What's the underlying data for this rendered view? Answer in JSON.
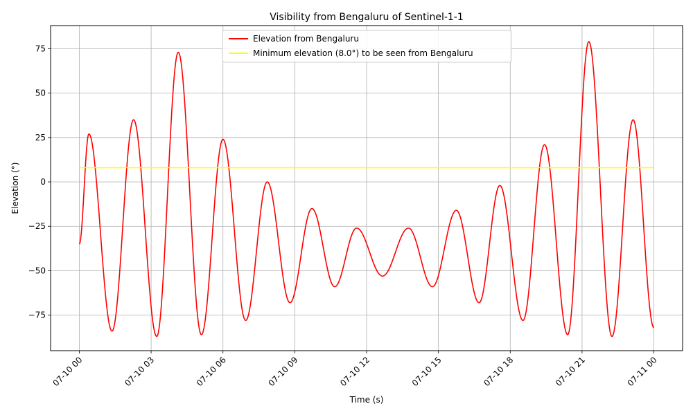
{
  "chart_data": {
    "type": "line",
    "title": "Visibility from Bengaluru of Sentinel-1-1",
    "xlabel": "Time (s)",
    "ylabel": "Elevation (°)",
    "xlim": [
      "2025-07-10 00:00",
      "2025-07-11 00:00"
    ],
    "ylim": [
      -95,
      88
    ],
    "grid": true,
    "legend_position": "top-center",
    "x_ticks": [
      {
        "value": "2025-07-10 00:00",
        "label": "07-10 00"
      },
      {
        "value": "2025-07-10 03:00",
        "label": "07-10 03"
      },
      {
        "value": "2025-07-10 06:00",
        "label": "07-10 06"
      },
      {
        "value": "2025-07-10 09:00",
        "label": "07-10 09"
      },
      {
        "value": "2025-07-10 12:00",
        "label": "07-10 12"
      },
      {
        "value": "2025-07-10 15:00",
        "label": "07-10 15"
      },
      {
        "value": "2025-07-10 18:00",
        "label": "07-10 18"
      },
      {
        "value": "2025-07-10 21:00",
        "label": "07-10 21"
      },
      {
        "value": "2025-07-11 00:00",
        "label": "07-11 00"
      }
    ],
    "y_ticks": [
      {
        "value": -75,
        "label": "−75"
      },
      {
        "value": -50,
        "label": "−50"
      },
      {
        "value": -25,
        "label": "−25"
      },
      {
        "value": 0,
        "label": "0"
      },
      {
        "value": 25,
        "label": "25"
      },
      {
        "value": 50,
        "label": "50"
      },
      {
        "value": 75,
        "label": "75"
      }
    ],
    "series": [
      {
        "name": "Elevation from Bengaluru",
        "color": "#ff0000",
        "extrema": [
          {
            "x": "2025-07-10 00:00",
            "y": -35
          },
          {
            "x": "2025-07-10 00:24",
            "y": 27
          },
          {
            "x": "2025-07-10 01:22",
            "y": -84
          },
          {
            "x": "2025-07-10 02:16",
            "y": 35
          },
          {
            "x": "2025-07-10 03:14",
            "y": -87
          },
          {
            "x": "2025-07-10 04:08",
            "y": 73
          },
          {
            "x": "2025-07-10 05:06",
            "y": -86
          },
          {
            "x": "2025-07-10 06:00",
            "y": 24
          },
          {
            "x": "2025-07-10 06:57",
            "y": -78
          },
          {
            "x": "2025-07-10 07:51",
            "y": 0
          },
          {
            "x": "2025-07-10 08:48",
            "y": -68
          },
          {
            "x": "2025-07-10 09:43",
            "y": -15
          },
          {
            "x": "2025-07-10 10:40",
            "y": -59
          },
          {
            "x": "2025-07-10 11:35",
            "y": -26
          },
          {
            "x": "2025-07-10 12:40",
            "y": -53
          },
          {
            "x": "2025-07-10 13:45",
            "y": -26
          },
          {
            "x": "2025-07-10 14:45",
            "y": -59
          },
          {
            "x": "2025-07-10 15:45",
            "y": -16
          },
          {
            "x": "2025-07-10 16:42",
            "y": -68
          },
          {
            "x": "2025-07-10 17:34",
            "y": -2
          },
          {
            "x": "2025-07-10 18:32",
            "y": -78
          },
          {
            "x": "2025-07-10 19:26",
            "y": 21
          },
          {
            "x": "2025-07-10 20:24",
            "y": -86
          },
          {
            "x": "2025-07-10 21:17",
            "y": 79
          },
          {
            "x": "2025-07-10 22:15",
            "y": -87
          },
          {
            "x": "2025-07-10 23:08",
            "y": 35
          },
          {
            "x": "2025-07-11 00:00",
            "y": -82
          }
        ]
      },
      {
        "name": "Minimum elevation (8.0°) to be seen from Bengaluru",
        "color": "#ffff00",
        "points": [
          {
            "x": "2025-07-10 00:00",
            "y": 8
          },
          {
            "x": "2025-07-11 00:00",
            "y": 8
          }
        ]
      }
    ]
  }
}
